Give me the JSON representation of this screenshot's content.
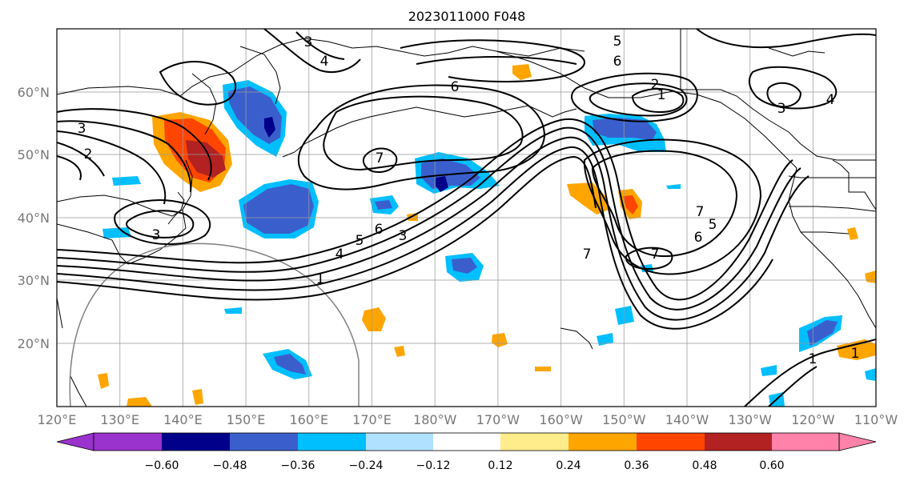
{
  "title": "2023011000 F048",
  "map": {
    "lon_labels": [
      "120°E",
      "130°E",
      "140°E",
      "150°E",
      "160°E",
      "170°E",
      "180°W",
      "170°W",
      "160°W",
      "150°W",
      "140°W",
      "130°W",
      "120°W",
      "110°W"
    ],
    "lat_labels": [
      "60°N",
      "50°N",
      "40°N",
      "30°N",
      "20°N"
    ],
    "contour_labels": [
      "3",
      "4",
      "5",
      "6",
      "6",
      "2",
      "1",
      "2",
      "3",
      "7",
      "3",
      "4",
      "5",
      "6",
      "3",
      "1",
      "7",
      "6",
      "5",
      "7",
      "7",
      "1",
      "1",
      "3",
      "4"
    ],
    "colors": {
      "contour": "#000000",
      "grid": "#999999",
      "range_ring": "#808080"
    }
  },
  "colorbar": {
    "tick_labels": [
      "−0.60",
      "−0.48",
      "−0.36",
      "−0.24",
      "−0.12",
      "0.12",
      "0.24",
      "0.36",
      "0.48",
      "0.60"
    ],
    "colors": [
      "#9a32cd",
      "#00008b",
      "#3a5fcd",
      "#00bfff",
      "#b0e2ff",
      "#ffffff",
      "#ffec8b",
      "#ffa500",
      "#ff4500",
      "#b22222",
      "#ff82ab"
    ]
  }
}
